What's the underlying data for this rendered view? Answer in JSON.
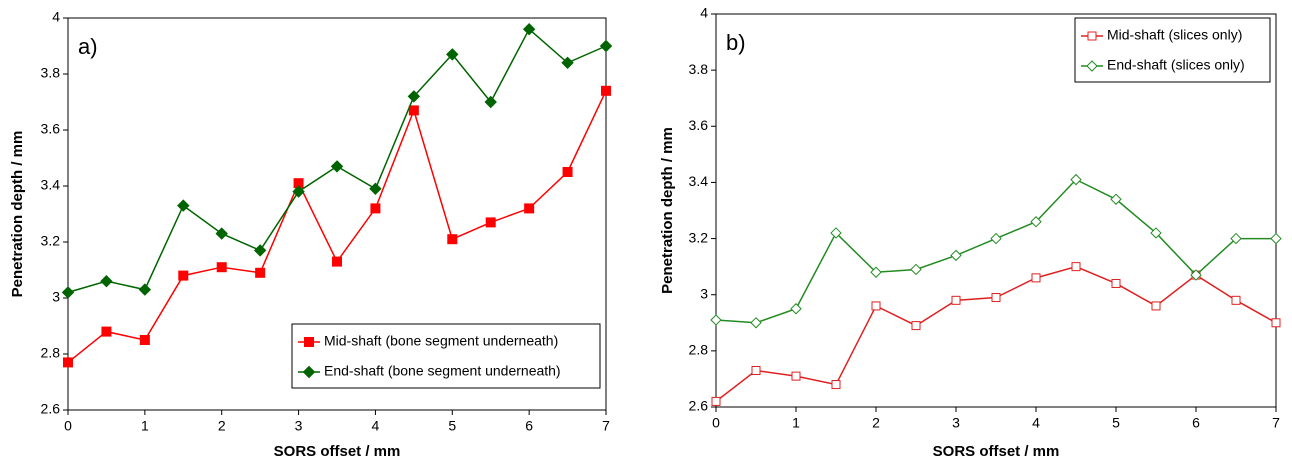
{
  "chart_data": [
    {
      "type": "line",
      "panel_label": "a)",
      "x_label": "SORS offset / mm",
      "y_label": "Penetration depth / mm",
      "x": [
        0,
        0.5,
        1,
        1.5,
        2,
        2.5,
        3,
        3.5,
        4,
        4.5,
        5,
        5.5,
        6,
        6.5,
        7
      ],
      "xlim": [
        0,
        7
      ],
      "xticks": [
        0,
        1,
        2,
        3,
        4,
        5,
        6,
        7
      ],
      "ylim": [
        2.6,
        4
      ],
      "yticks": [
        2.6,
        2.8,
        3,
        3.2,
        3.4,
        3.6,
        3.8,
        4
      ],
      "legend": "lower right",
      "legend_box": true,
      "markers_filled": true,
      "series": [
        {
          "name": "Mid-shaft (bone segment underneath)",
          "color": "#ff0000",
          "marker": "square",
          "values": [
            2.77,
            2.88,
            2.85,
            3.08,
            3.11,
            3.09,
            3.41,
            3.13,
            3.32,
            3.67,
            3.21,
            3.27,
            3.32,
            3.45,
            3.74
          ]
        },
        {
          "name": "End-shaft (bone segment underneath)",
          "color": "#006400",
          "marker": "diamond",
          "values": [
            3.02,
            3.06,
            3.03,
            3.33,
            3.23,
            3.17,
            3.38,
            3.47,
            3.39,
            3.72,
            3.87,
            3.7,
            3.96,
            3.84,
            3.9
          ]
        }
      ]
    },
    {
      "type": "line",
      "panel_label": "b)",
      "x_label": "SORS offset / mm",
      "y_label": "Penetration depth / mm",
      "x": [
        0,
        0.5,
        1,
        1.5,
        2,
        2.5,
        3,
        3.5,
        4,
        4.5,
        5,
        5.5,
        6,
        6.5,
        7
      ],
      "xlim": [
        0,
        7
      ],
      "xticks": [
        0,
        1,
        2,
        3,
        4,
        5,
        6,
        7
      ],
      "ylim": [
        2.6,
        4
      ],
      "yticks": [
        2.6,
        2.8,
        3,
        3.2,
        3.4,
        3.6,
        3.8,
        4
      ],
      "legend": "upper right",
      "legend_box": true,
      "markers_filled": false,
      "series": [
        {
          "name": "Mid-shaft (slices only)",
          "color": "#e02020",
          "marker": "square",
          "values": [
            2.62,
            2.73,
            2.71,
            2.68,
            2.96,
            2.89,
            2.98,
            2.99,
            3.06,
            3.1,
            3.04,
            2.96,
            3.07,
            2.98,
            2.9
          ]
        },
        {
          "name": "End-shaft (slices only)",
          "color": "#228b22",
          "marker": "diamond",
          "values": [
            2.91,
            2.9,
            2.95,
            3.22,
            3.08,
            3.09,
            3.14,
            3.2,
            3.26,
            3.41,
            3.34,
            3.22,
            3.07,
            3.2,
            3.2
          ]
        }
      ]
    }
  ]
}
